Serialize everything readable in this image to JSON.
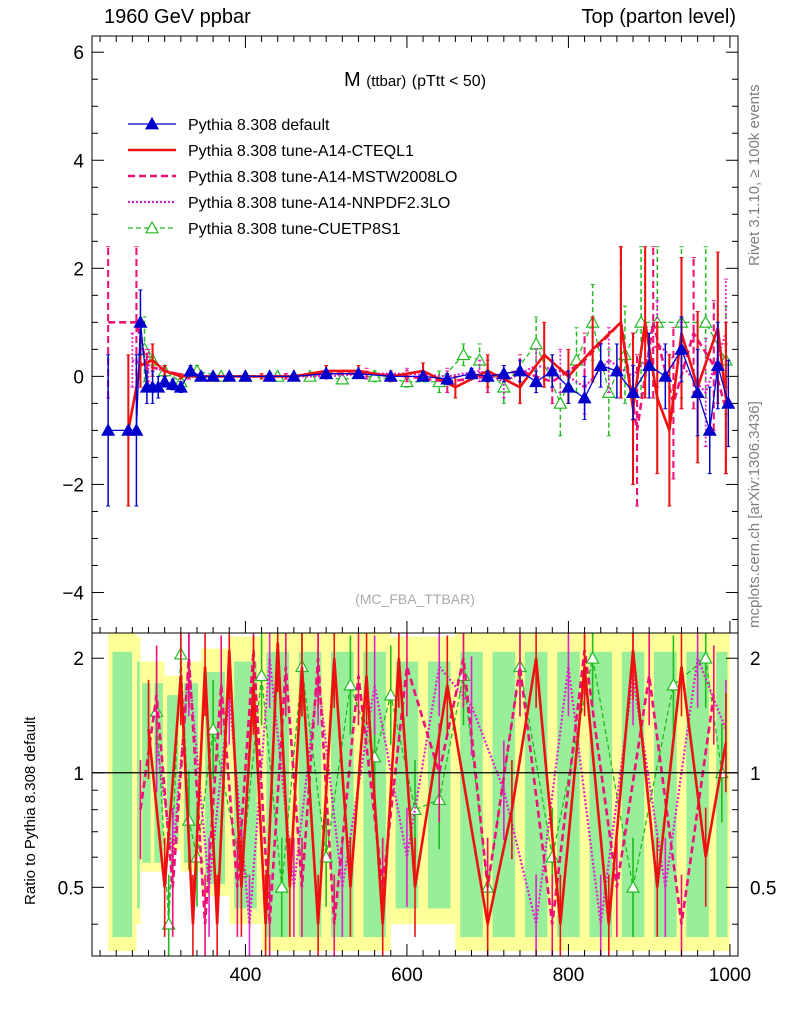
{
  "header": {
    "left": "1960 GeV ppbar",
    "right": "Top (parton level)"
  },
  "side_labels": {
    "rivet": "Rivet 3.1.10, ≥ 100k events",
    "mcplots": "mcplots.cern.ch [arXiv:1306.3436]"
  },
  "colors": {
    "default": "#0000cc",
    "cteql1": "#ee1111",
    "mstw": "#ee1177",
    "nnpdf": "#dd22cc",
    "cuetp8s1": "#22bb22",
    "band_inner": "#99ee99",
    "band_outer": "#ffff99"
  },
  "chart_data": [
    {
      "type": "line",
      "title": "M",
      "title_sub": "(ttbar)",
      "title_suffix": "(pTtt < 50)",
      "watermark": "(MC_FBA_TTBAR)",
      "xlim": [
        210,
        1010
      ],
      "ylim": [
        -4.75,
        6.3
      ],
      "yticks": [
        -4,
        -2,
        0,
        2,
        4,
        6
      ],
      "legend_position": "top-left",
      "series": [
        {
          "name": "Pythia 8.308 default",
          "x": [
            230,
            255,
            265,
            270,
            278,
            285,
            292,
            300,
            310,
            320,
            332,
            345,
            360,
            380,
            400,
            430,
            460,
            500,
            540,
            580,
            620,
            650,
            680,
            700,
            720,
            740,
            760,
            780,
            800,
            820,
            840,
            860,
            880,
            900,
            920,
            940,
            960,
            975,
            985,
            998
          ],
          "y": [
            -1.0,
            -1.0,
            -1.0,
            1.0,
            -0.2,
            -0.2,
            -0.2,
            -0.1,
            -0.15,
            -0.2,
            0.1,
            0.0,
            0.0,
            0.0,
            0.0,
            0.0,
            0.0,
            0.05,
            0.05,
            0.0,
            0.0,
            -0.05,
            0.05,
            0.0,
            0.05,
            0.1,
            -0.1,
            0.1,
            -0.2,
            -0.4,
            0.2,
            0.1,
            -0.3,
            0.2,
            0.0,
            0.5,
            -0.3,
            -1.0,
            0.2,
            -0.5
          ],
          "err": [
            1.4,
            0,
            1.4,
            0.6,
            0.3,
            0.3,
            0.2,
            0.1,
            0.1,
            0.1,
            0.1,
            0.05,
            0.05,
            0.05,
            0.05,
            0.05,
            0.05,
            0.05,
            0.05,
            0.05,
            0.08,
            0.1,
            0.1,
            0.1,
            0.15,
            0.2,
            0.2,
            0.3,
            0.3,
            0.4,
            0.4,
            0.5,
            0.5,
            0.6,
            0.6,
            0.6,
            0.8,
            0.8,
            0.8,
            0.8
          ],
          "marker": "triangle"
        },
        {
          "name": "Pythia 8.308 tune-A14-CTEQL1",
          "x": [
            255,
            270,
            285,
            300,
            320,
            345,
            380,
            420,
            460,
            500,
            540,
            580,
            620,
            660,
            700,
            740,
            770,
            800,
            830,
            865,
            880,
            895,
            910,
            925,
            940,
            960,
            985,
            995
          ],
          "y": [
            -1.0,
            0.2,
            0.3,
            0.1,
            0.0,
            0.0,
            0.0,
            0.0,
            0.0,
            0.1,
            0.1,
            0.0,
            0.1,
            -0.2,
            0.1,
            -0.2,
            0.4,
            0.0,
            0.5,
            1.0,
            -0.6,
            1.0,
            -0.4,
            -1.0,
            0.8,
            -0.2,
            0.9,
            -0.4
          ],
          "err": [
            1.4,
            0.4,
            0.3,
            0.1,
            0.05,
            0.05,
            0.05,
            0.05,
            0.05,
            0.1,
            0.1,
            0.1,
            0.15,
            0.2,
            0.3,
            0.3,
            0.6,
            0.5,
            0.6,
            1.4,
            1.4,
            1.4,
            1.4,
            1.4,
            1.4,
            1.4,
            1.4,
            1.4
          ],
          "marker": "none"
        },
        {
          "name": "Pythia 8.308 tune-A14-MSTW2008LO",
          "x": [
            230,
            265,
            278,
            300,
            330,
            360,
            400,
            450,
            500,
            550,
            600,
            650,
            700,
            740,
            780,
            820,
            865,
            885,
            905,
            930,
            955,
            980,
            995
          ],
          "y": [
            1.0,
            1.0,
            0.2,
            0.1,
            0.0,
            0.0,
            0.0,
            0.0,
            0.05,
            0.05,
            0.0,
            -0.1,
            0.0,
            0.1,
            -0.1,
            0.3,
            1.0,
            -1.0,
            1.0,
            -0.5,
            0.8,
            0.2,
            -0.6
          ],
          "err": [
            1.4,
            1.4,
            0.3,
            0.1,
            0.05,
            0.05,
            0.05,
            0.05,
            0.05,
            0.1,
            0.1,
            0.2,
            0.3,
            0.3,
            0.4,
            0.5,
            1.4,
            1.4,
            1.4,
            1.4,
            1.4,
            1.2,
            1.2
          ],
          "marker": "none"
        },
        {
          "name": "Pythia 8.308 tune-A14-NNPDF2.3LO",
          "x": [
            260,
            280,
            300,
            330,
            360,
            400,
            450,
            500,
            550,
            600,
            650,
            690,
            720,
            760,
            790,
            820,
            850,
            880,
            910,
            940,
            970,
            995
          ],
          "y": [
            0.3,
            0.2,
            0.1,
            0.0,
            0.0,
            0.0,
            0.0,
            0.0,
            0.05,
            0.05,
            0.0,
            0.1,
            -0.1,
            0.2,
            0.1,
            -0.2,
            0.3,
            0.0,
            0.6,
            0.2,
            -0.3,
            0.8
          ],
          "err": [
            0.5,
            0.3,
            0.1,
            0.05,
            0.05,
            0.05,
            0.05,
            0.05,
            0.05,
            0.1,
            0.15,
            0.2,
            0.3,
            0.3,
            0.4,
            0.5,
            0.6,
            0.8,
            0.8,
            0.8,
            1.0,
            1.0
          ],
          "marker": "none"
        },
        {
          "name": "Pythia 8.308 tune-CUETP8S1",
          "x": [
            275,
            285,
            300,
            320,
            340,
            370,
            400,
            440,
            480,
            520,
            560,
            600,
            640,
            670,
            690,
            720,
            760,
            790,
            810,
            830,
            850,
            870,
            890,
            910,
            940,
            970,
            995
          ],
          "y": [
            0.5,
            0.3,
            0.1,
            -0.1,
            0.1,
            0.0,
            0.0,
            0.0,
            0.0,
            -0.05,
            0.0,
            -0.1,
            -0.1,
            0.4,
            0.3,
            -0.2,
            0.6,
            -0.5,
            0.3,
            1.0,
            -0.3,
            0.4,
            1.0,
            1.0,
            1.0,
            1.0,
            0.3
          ],
          "err": [
            0.6,
            0.3,
            0.1,
            0.1,
            0.1,
            0.05,
            0.05,
            0.05,
            0.05,
            0.05,
            0.1,
            0.1,
            0.2,
            0.2,
            0.3,
            0.3,
            0.5,
            0.6,
            0.6,
            0.7,
            0.8,
            0.9,
            1.4,
            1.4,
            1.4,
            1.4,
            1.0
          ],
          "marker": "open-triangle"
        }
      ]
    },
    {
      "type": "line",
      "ylabel": "Ratio to Pythia 8.308 default",
      "xlim": [
        210,
        1010
      ],
      "ylim": [
        0.33,
        2.33
      ],
      "xticks": [
        400,
        600,
        800,
        1000
      ],
      "yticks": [
        0.5,
        1,
        2
      ],
      "reference_line": 1,
      "band_x": [
        230,
        265,
        270,
        285,
        300,
        320,
        345,
        380,
        420,
        460,
        500,
        540,
        580,
        620,
        660,
        700,
        740,
        780,
        820,
        860,
        900,
        940,
        980
      ],
      "band_half_width": [
        0.9,
        0.8,
        0.6,
        0.6,
        0.5,
        0.6,
        0.7,
        0.8,
        0.9,
        0.9,
        0.9,
        0.9,
        0.8,
        0.8,
        0.9,
        0.9,
        0.9,
        0.9,
        0.9,
        0.9,
        0.9,
        0.9,
        0.9
      ],
      "series": [
        {
          "name": "Pythia 8.308 tune-A14-CTEQL1",
          "x": [
            280,
            300,
            320,
            335,
            350,
            365,
            380,
            395,
            410,
            425,
            440,
            455,
            470,
            490,
            510,
            530,
            550,
            570,
            590,
            610,
            650,
            700,
            730,
            760,
            790,
            820,
            850,
            880,
            910,
            940,
            970,
            995
          ],
          "y": [
            1.3,
            0.5,
            1.8,
            0.4,
            1.9,
            0.4,
            2.1,
            0.5,
            1.7,
            0.4,
            2.2,
            0.5,
            1.9,
            0.4,
            2.0,
            0.5,
            1.8,
            0.4,
            2.0,
            0.5,
            1.7,
            0.4,
            0.8,
            2.0,
            0.4,
            1.9,
            0.4,
            2.1,
            0.5,
            1.9,
            0.6,
            1.2
          ]
        },
        {
          "name": "Pythia 8.308 tune-A14-MSTW2008LO",
          "x": [
            270,
            290,
            310,
            330,
            350,
            370,
            390,
            410,
            430,
            450,
            470,
            490,
            510,
            540,
            570,
            600,
            640,
            670,
            700,
            740,
            780,
            820,
            860,
            900,
            940,
            980
          ],
          "y": [
            0.8,
            1.6,
            0.5,
            2.0,
            0.4,
            1.7,
            0.5,
            2.1,
            0.4,
            1.9,
            0.5,
            2.0,
            0.4,
            1.8,
            0.5,
            1.9,
            1.0,
            2.0,
            0.5,
            1.9,
            0.4,
            2.1,
            0.5,
            1.8,
            0.4,
            1.6
          ]
        },
        {
          "name": "Pythia 8.308 tune-A14-NNPDF2.3LO",
          "x": [
            290,
            310,
            330,
            355,
            380,
            405,
            430,
            460,
            490,
            520,
            560,
            600,
            640,
            680,
            720,
            760,
            800,
            840,
            880,
            920,
            960,
            995
          ],
          "y": [
            1.2,
            0.6,
            1.9,
            0.5,
            1.6,
            0.4,
            2.0,
            0.5,
            1.8,
            0.5,
            1.7,
            0.6,
            1.9,
            1.5,
            0.9,
            0.4,
            1.9,
            0.4,
            1.8,
            0.5,
            2.0,
            1.3
          ]
        },
        {
          "name": "Pythia 8.308 tune-CUETP8S1",
          "x": [
            290,
            305,
            320,
            330,
            340,
            360,
            395,
            420,
            445,
            470,
            500,
            530,
            560,
            580,
            610,
            640,
            670,
            700,
            740,
            780,
            830,
            880,
            930,
            970,
            990
          ],
          "y": [
            1.45,
            0.4,
            2.05,
            0.75,
            0.6,
            1.3,
            0.55,
            1.8,
            0.5,
            1.9,
            0.6,
            1.7,
            1.1,
            1.6,
            0.8,
            0.85,
            1.8,
            0.5,
            1.9,
            0.6,
            2.0,
            0.5,
            1.7,
            2.0,
            1.0
          ]
        }
      ]
    }
  ]
}
